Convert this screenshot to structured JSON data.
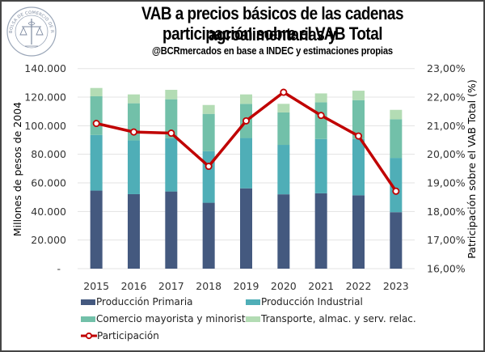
{
  "header": {
    "title_line1": "VAB a precios básicos de las cadenas agroalimentarias y",
    "title_line2": "participación sobre el VAB Total",
    "subtitle": "@BCRmercados  en base a INDEC y estimaciones propias",
    "logo_text": "BOLSA DE COMERCIO DE ROSARIO"
  },
  "colors": {
    "produccion_primaria": "#44597F",
    "produccion_industrial": "#4FAEB7",
    "comercio": "#72C0A9",
    "transporte": "#B3DCB4",
    "participacion": "#C00000",
    "grid": "#E3E3E3"
  },
  "chart_data": {
    "type": "bar",
    "stacked": true,
    "title": "VAB a precios básicos de las cadenas agroalimentarias y participación sobre el VAB Total",
    "subtitle": "@BCRmercados en base a INDEC y estimaciones propias",
    "categories": [
      "2015",
      "2016",
      "2017",
      "2018",
      "2019",
      "2020",
      "2021",
      "2022",
      "2023"
    ],
    "series": [
      {
        "name": "Producción Primaria",
        "type": "bar",
        "axis": "left",
        "color_key": "produccion_primaria",
        "values": [
          54600,
          52100,
          54000,
          46100,
          56200,
          52000,
          52700,
          51300,
          39500
        ]
      },
      {
        "name": "Producción Industrial",
        "type": "bar",
        "axis": "left",
        "color_key": "produccion_industrial",
        "values": [
          38900,
          37600,
          37200,
          36100,
          35200,
          34600,
          38000,
          39400,
          38000
        ]
      },
      {
        "name": "Comercio mayorista y minorista",
        "type": "bar",
        "axis": "left",
        "color_key": "comercio",
        "values": [
          27100,
          26000,
          27300,
          26100,
          23900,
          22700,
          25700,
          27200,
          27000
        ]
      },
      {
        "name": "Transporte, almac. y serv. relac.",
        "type": "bar",
        "axis": "left",
        "color_key": "transporte",
        "values": [
          5800,
          6200,
          6600,
          6200,
          6600,
          6000,
          6200,
          6600,
          6600
        ]
      },
      {
        "name": "Participación",
        "type": "line",
        "axis": "right",
        "color_key": "participacion",
        "values": [
          21.08,
          20.78,
          20.74,
          19.58,
          21.17,
          22.17,
          21.36,
          20.64,
          18.71
        ]
      }
    ],
    "xlabel": "",
    "ylabel": "Millones de pesos de 2004",
    "y2label": "Patricipación sobre el VAB Total (%)",
    "ylim": [
      0,
      140000
    ],
    "y2lim": [
      16,
      23
    ],
    "yticks": [
      "-",
      "20.000",
      "40.000",
      "60.000",
      "80.000",
      "100.000",
      "120.000",
      "140.000"
    ],
    "y2ticks": [
      "16,00%",
      "17,00%",
      "18,00%",
      "19,00%",
      "20,00%",
      "21,00%",
      "22,00%",
      "23,00%"
    ],
    "grid": true,
    "legend_position": "bottom"
  }
}
